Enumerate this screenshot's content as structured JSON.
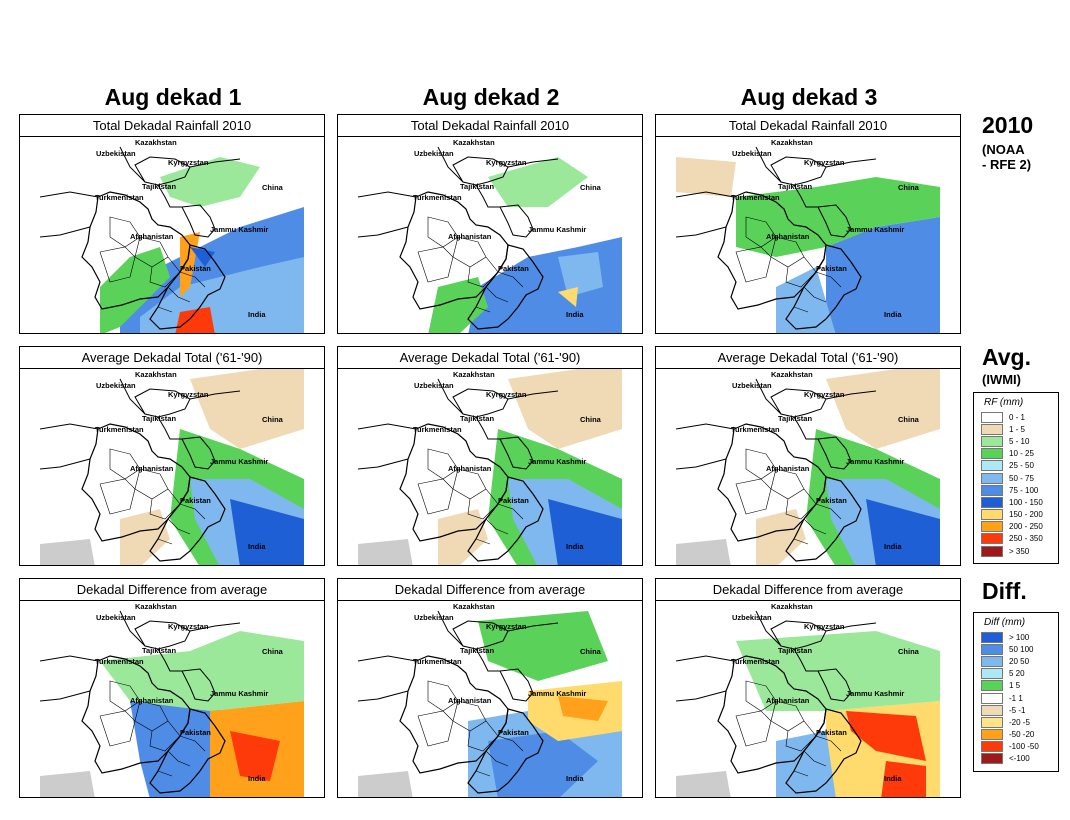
{
  "columns": [
    "Aug dekad 1",
    "Aug dekad 2",
    "Aug dekad 3"
  ],
  "rows": [
    {
      "panel_title": "Total Dekadal Rainfall 2010",
      "side_title": "2010",
      "side_sub": [
        "(NOAA",
        "- RFE 2)"
      ]
    },
    {
      "panel_title": "Average Dekadal Total ('61-'90)",
      "side_title": "Avg.",
      "side_sub": [
        "(IWMI)"
      ]
    },
    {
      "panel_title": "Dekadal Difference from average",
      "side_title": "Diff.",
      "side_sub": []
    }
  ],
  "map_labels": [
    "Kazakhstan",
    "Uzbekistan",
    "Kyrgyzstan",
    "Tajikistan",
    "China",
    "Turkmenistan",
    "Afghanistan",
    "Jammu Kashmir",
    "Pakistan",
    "India"
  ],
  "rf_legend": {
    "title": "RF (mm)",
    "items": [
      {
        "label": "0 - 1",
        "color": "#ffffff"
      },
      {
        "label": "1 - 5",
        "color": "#f0d9b5"
      },
      {
        "label": "5 - 10",
        "color": "#9be89b"
      },
      {
        "label": "10 - 25",
        "color": "#5ad25a"
      },
      {
        "label": "25 - 50",
        "color": "#aee8f5"
      },
      {
        "label": "50 - 75",
        "color": "#7fb8ee"
      },
      {
        "label": "75 - 100",
        "color": "#4f8ce6"
      },
      {
        "label": "100 - 150",
        "color": "#1f5fd6"
      },
      {
        "label": "150 - 200",
        "color": "#ffdb6e"
      },
      {
        "label": "200 - 250",
        "color": "#ffa11a"
      },
      {
        "label": "250 - 350",
        "color": "#ff3a0a"
      },
      {
        "label": "> 350",
        "color": "#9e1a1a"
      }
    ]
  },
  "diff_legend": {
    "title": "Diff (mm)",
    "items": [
      {
        "label": "> 100",
        "color": "#1f5fd6"
      },
      {
        "label": "50  100",
        "color": "#4f8ce6"
      },
      {
        "label": "20  50",
        "color": "#7fb8ee"
      },
      {
        "label": "5  20",
        "color": "#aee8f5"
      },
      {
        "label": "1  5",
        "color": "#5ad25a"
      },
      {
        "label": "-1  1",
        "color": "#ffffff"
      },
      {
        "label": "-5  -1",
        "color": "#f0d9b5"
      },
      {
        "label": "-20  -5",
        "color": "#ffe58a"
      },
      {
        "label": "-50  -20",
        "color": "#ffa11a"
      },
      {
        "label": "-100  -50",
        "color": "#ff3a0a"
      },
      {
        "label": "<-100",
        "color": "#9e1a1a"
      }
    ]
  }
}
